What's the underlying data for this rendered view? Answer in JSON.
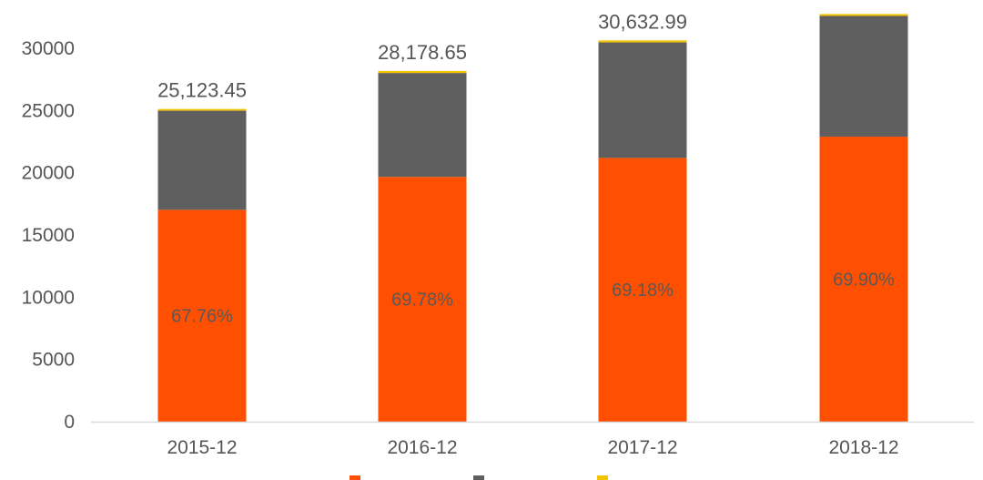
{
  "chart_data": {
    "type": "bar",
    "stacked": true,
    "categories": [
      "2015-12",
      "2016-12",
      "2017-12",
      "2018-12"
    ],
    "series": [
      {
        "values": [
          17023,
          19664,
          21192,
          22900
        ]
      },
      {
        "values": [
          7960,
          8350,
          9280,
          9700
        ]
      },
      {
        "values": [
          140,
          165,
          161,
          150
        ]
      }
    ],
    "totals": [
      25123.45,
      28178.65,
      30632.99,
      32750
    ],
    "total_labels": [
      "25,123.45",
      "28,178.65",
      "30,632.99",
      ""
    ],
    "percent_labels": [
      "67.76%",
      "69.78%",
      "69.18%",
      "69.90%"
    ],
    "yticks": [
      "0",
      "5000",
      "10000",
      "15000",
      "20000",
      "25000",
      "30000"
    ],
    "ylim": [
      0,
      33000
    ],
    "grid": false,
    "legend": "bottom",
    "colors": [
      "#fe5000",
      "#5f5f5f",
      "#f3c300"
    ]
  }
}
